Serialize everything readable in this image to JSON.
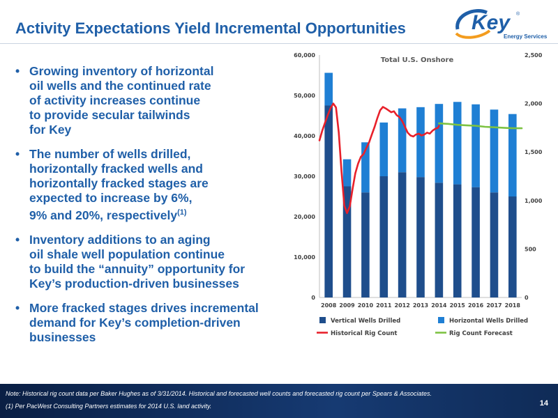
{
  "header": {
    "title": "Activity Expectations Yield Incremental Opportunities"
  },
  "logo": {
    "brand": "Key",
    "tagline": "Energy Services",
    "mark": "®"
  },
  "bullets": [
    {
      "lines": [
        "Growing inventory of horizontal",
        "oil wells and the continued rate",
        "of activity increases continue",
        "to provide secular tailwinds",
        "for Key"
      ]
    },
    {
      "lines": [
        "The number of wells drilled,",
        "horizontally fracked wells and",
        "horizontally fracked stages are",
        "expected to increase by 6%,",
        "9% and 20%, respectively"
      ],
      "sup": "(1)"
    },
    {
      "lines": [
        "Inventory additions to an aging",
        "oil shale well population continue",
        "to build the “annuity” opportunity for",
        "Key’s production-driven businesses"
      ]
    },
    {
      "lines": [
        "More fracked stages drives incremental",
        "demand for Key’s completion-driven",
        "businesses"
      ]
    }
  ],
  "bullet_symbol": "•",
  "chart_data": {
    "type": "bar",
    "title": "Total U.S. Onshore",
    "categories": [
      "2008",
      "2009",
      "2010",
      "2011",
      "2012",
      "2013",
      "2014",
      "2015",
      "2016",
      "2017",
      "2018"
    ],
    "y_left": {
      "ylim": [
        0,
        60000
      ],
      "ticks": [
        "0",
        "10,000",
        "20,000",
        "30,000",
        "40,000",
        "50,000",
        "60,000"
      ]
    },
    "y_right": {
      "ylim": [
        0,
        2500
      ],
      "ticks": [
        "0",
        "500",
        "1,000",
        "1,500",
        "2,000",
        "2,500"
      ]
    },
    "series": [
      {
        "name": "Vertical Wells Drilled",
        "kind": "stacked-bar",
        "axis": "left",
        "color": "#1f4e8c",
        "values": [
          47500,
          27500,
          26000,
          30000,
          31000,
          29800,
          28400,
          28000,
          27300,
          26000,
          25000
        ]
      },
      {
        "name": "Horizontal Wells Drilled",
        "kind": "stacked-bar",
        "axis": "left",
        "color": "#1f7fd4",
        "values": [
          8100,
          6700,
          12400,
          13300,
          15800,
          17300,
          19500,
          20400,
          20500,
          20500,
          20400
        ]
      },
      {
        "name": "Historical Rig Count",
        "kind": "line",
        "axis": "right",
        "color": "#e8202a",
        "x": [
          2007.5,
          2007.65,
          2007.8,
          2007.95,
          2008.1,
          2008.25,
          2008.4,
          2008.55,
          2008.7,
          2008.85,
          2009.0,
          2009.15,
          2009.3,
          2009.45,
          2009.6,
          2009.75,
          2009.9,
          2010.05,
          2010.2,
          2010.35,
          2010.5,
          2010.65,
          2010.8,
          2010.95,
          2011.1,
          2011.25,
          2011.4,
          2011.55,
          2011.7,
          2011.85,
          2012.0,
          2012.15,
          2012.3,
          2012.45,
          2012.6,
          2012.75,
          2012.9,
          2013.05,
          2013.2,
          2013.35,
          2013.5,
          2013.65,
          2013.8,
          2013.95,
          2014.0
        ],
        "values": [
          1620,
          1720,
          1800,
          1880,
          1950,
          2000,
          1960,
          1700,
          1300,
          950,
          870,
          940,
          1120,
          1280,
          1380,
          1450,
          1480,
          1540,
          1600,
          1680,
          1760,
          1850,
          1930,
          1965,
          1950,
          1930,
          1910,
          1920,
          1880,
          1860,
          1820,
          1760,
          1700,
          1670,
          1660,
          1680,
          1690,
          1670,
          1680,
          1700,
          1690,
          1720,
          1740,
          1750,
          1770
        ]
      },
      {
        "name": "Rig Count Forecast",
        "kind": "line",
        "axis": "right",
        "color": "#7dc242",
        "x": [
          2014.0,
          2014.5,
          2015.0,
          2015.5,
          2016.0,
          2016.5,
          2017.0,
          2017.5,
          2018.0,
          2018.5
        ],
        "values": [
          1795,
          1790,
          1780,
          1775,
          1770,
          1760,
          1755,
          1750,
          1745,
          1745
        ]
      }
    ],
    "legend_position": "bottom",
    "grid": false
  },
  "footer": {
    "note": "Note: Historical rig count data per Baker Hughes as of 3/31/2014. Historical and forecasted well counts and forecasted rig count per Spears & Associates.",
    "footnote": "(1) Per PacWest Consulting Partners estimates for 2014 U.S. land activity.",
    "page": "14"
  }
}
